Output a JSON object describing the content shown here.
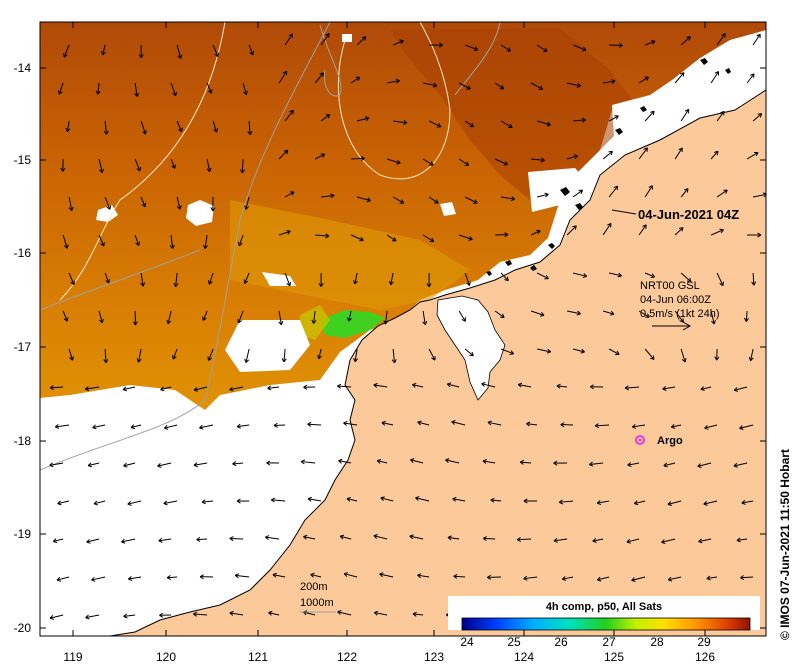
{
  "map": {
    "timestamp_label": "04-Jun-2021 04Z",
    "current_info": {
      "line1": "NRT00 GSL",
      "line2": "04-Jun 06:00Z",
      "line3": "0.5m/s (1kt 24h)"
    },
    "argo_label": "Argo",
    "depth_contours": {
      "shallow": "200m",
      "deep": "1000m"
    },
    "credit": "© IMOS 07-Jun-2021 11:50 Hobart",
    "colorbar": {
      "title": "4h comp, p50, All Sats",
      "ticks": [
        "24",
        "25",
        "26",
        "27",
        "28",
        "29"
      ]
    },
    "lon_ticks": [
      "119",
      "120",
      "121",
      "122",
      "123",
      "124",
      "125",
      "126"
    ],
    "lat_ticks": [
      "-14",
      "-15",
      "-16",
      "-17",
      "-18",
      "-19",
      "-20"
    ],
    "colors": {
      "land": "#fcc99a",
      "sst_warm": "#b04a04",
      "sst_mid": "#d87a04",
      "sst_cool": "#e8a800",
      "sst_green": "#40d020",
      "no_data": "#ffffff",
      "argo": "#e040e0"
    }
  }
}
